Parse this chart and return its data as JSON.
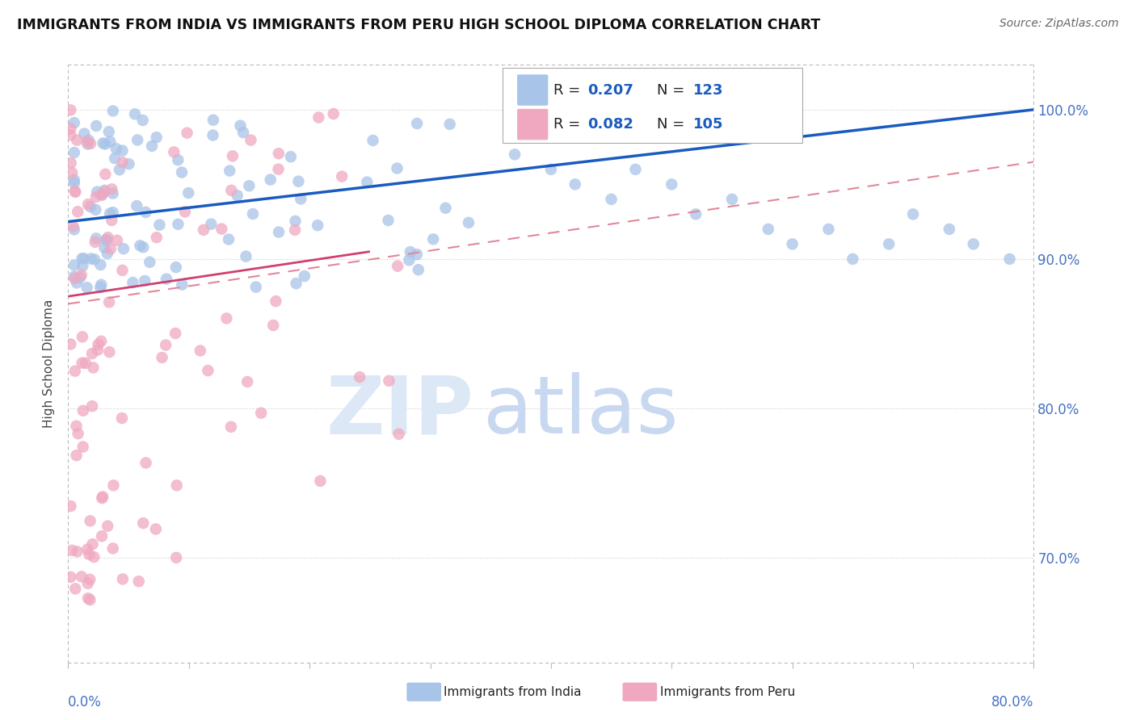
{
  "title": "IMMIGRANTS FROM INDIA VS IMMIGRANTS FROM PERU HIGH SCHOOL DIPLOMA CORRELATION CHART",
  "source": "Source: ZipAtlas.com",
  "ylabel": "High School Diploma",
  "legend_india": "Immigrants from India",
  "legend_peru": "Immigrants from Peru",
  "R_india": 0.207,
  "N_india": 123,
  "R_peru": 0.082,
  "N_peru": 105,
  "india_color": "#a8c4e8",
  "peru_color": "#f0a8c0",
  "india_line_color": "#1a5bbf",
  "peru_solid_color": "#d04070",
  "peru_dash_color": "#e08898",
  "xmin": 0,
  "xmax": 80,
  "ymin": 63,
  "ymax": 103,
  "yticks": [
    70,
    80,
    90,
    100
  ],
  "ytick_labels": [
    "70.0%",
    "80.0%",
    "90.0%",
    "100.0%"
  ],
  "india_line_x0": 0,
  "india_line_x1": 80,
  "india_line_y0": 92.5,
  "india_line_y1": 100.0,
  "peru_dash_x0": 0,
  "peru_dash_x1": 80,
  "peru_dash_y0": 87.0,
  "peru_dash_y1": 96.5,
  "peru_solid_x0": 0,
  "peru_solid_x1": 25,
  "peru_solid_y0": 87.5,
  "peru_solid_y1": 90.5
}
